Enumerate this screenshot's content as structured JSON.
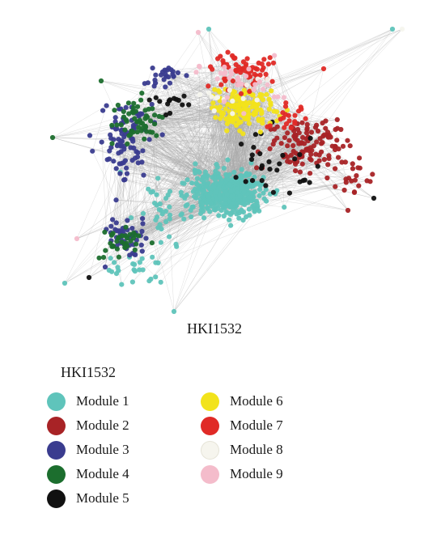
{
  "figure": {
    "network_label": "HKI1532"
  },
  "legend": {
    "title": "HKI1532",
    "items": [
      {
        "label": "Module 1",
        "color": "#5fc4bb"
      },
      {
        "label": "Module 2",
        "color": "#a82326"
      },
      {
        "label": "Module 3",
        "color": "#3a3c8f"
      },
      {
        "label": "Module 4",
        "color": "#1c6e2e"
      },
      {
        "label": "Module 5",
        "color": "#111111"
      },
      {
        "label": "Module 6",
        "color": "#f2e31b"
      },
      {
        "label": "Module 7",
        "color": "#e02a26"
      },
      {
        "label": "Module 8",
        "color": "#f6f5ee"
      },
      {
        "label": "Module 9",
        "color": "#f4bccb"
      }
    ]
  },
  "colors": {
    "edge": "#a9a9a9"
  }
}
